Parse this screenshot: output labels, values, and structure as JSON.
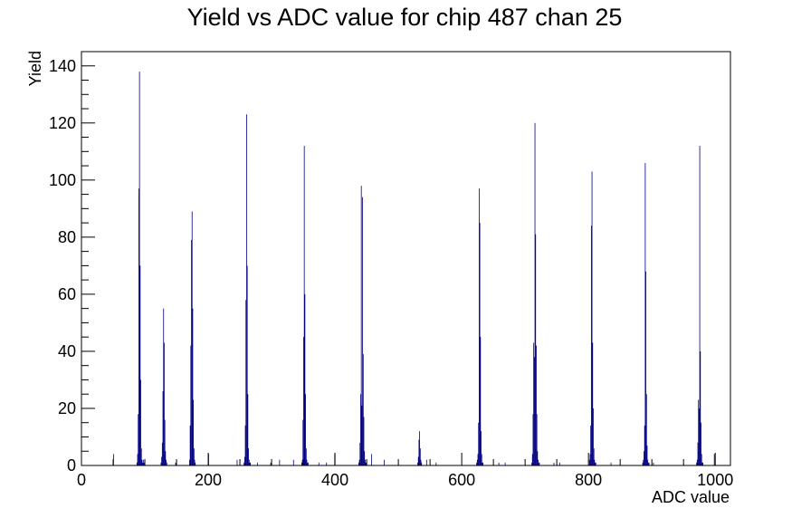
{
  "chart_data": {
    "type": "bar",
    "title": "Yield vs ADC value for chip 487 chan 25",
    "xlabel": "ADC value",
    "ylabel": "Yield",
    "xlim": [
      0,
      1024
    ],
    "ylim": [
      0,
      145
    ],
    "x_ticks": [
      0,
      200,
      400,
      600,
      800,
      1000
    ],
    "y_ticks": [
      0,
      20,
      40,
      60,
      80,
      100,
      120,
      140
    ],
    "grid": false,
    "legend": "none",
    "series_color": "#000080",
    "series": [
      {
        "x": [
          50,
          87,
          88,
          89,
          90,
          91,
          92,
          93,
          94,
          95,
          96,
          97,
          98,
          125,
          126,
          127,
          128,
          129,
          130,
          131,
          132,
          133,
          134,
          148,
          170,
          171,
          172,
          173,
          174,
          175,
          176,
          177,
          178,
          179,
          200,
          245,
          256,
          257,
          258,
          259,
          260,
          261,
          262,
          263,
          264,
          265,
          266,
          277,
          298,
          312,
          334,
          347,
          348,
          349,
          350,
          351,
          352,
          353,
          354,
          355,
          356,
          357,
          374,
          386,
          399,
          437,
          438,
          439,
          440,
          441,
          442,
          443,
          444,
          445,
          446,
          447,
          448,
          449,
          457,
          477,
          530,
          531,
          532,
          533,
          534,
          535,
          536,
          544,
          559,
          623,
          624,
          625,
          626,
          627,
          628,
          629,
          630,
          631,
          632,
          633,
          658,
          668,
          710,
          711,
          712,
          713,
          714,
          715,
          716,
          717,
          718,
          719,
          720,
          721,
          722,
          745,
          754,
          801,
          802,
          803,
          804,
          805,
          806,
          807,
          808,
          809,
          810,
          811,
          835,
          885,
          886,
          887,
          888,
          889,
          890,
          891,
          892,
          893,
          894,
          895,
          902,
          970,
          971,
          972,
          973,
          974,
          975,
          976,
          977,
          978,
          979,
          980,
          998
        ],
        "y": [
          4,
          1,
          4,
          18,
          97,
          138,
          70,
          30,
          6,
          2,
          1,
          2,
          1,
          1,
          3,
          8,
          26,
          55,
          43,
          16,
          5,
          2,
          1,
          1,
          2,
          14,
          42,
          79,
          89,
          55,
          23,
          6,
          2,
          1,
          4,
          2,
          1,
          3,
          14,
          58,
          123,
          70,
          25,
          6,
          2,
          1,
          1,
          1,
          1,
          2,
          2,
          1,
          2,
          16,
          45,
          112,
          60,
          25,
          6,
          2,
          1,
          1,
          1,
          1,
          4,
          1,
          2,
          8,
          25,
          98,
          21,
          94,
          39,
          17,
          5,
          2,
          1,
          1,
          4,
          2,
          1,
          3,
          9,
          12,
          6,
          2,
          1,
          2,
          1,
          1,
          2,
          4,
          15,
          97,
          85,
          45,
          12,
          4,
          1,
          1,
          1,
          1,
          1,
          4,
          18,
          43,
          38,
          120,
          81,
          42,
          18,
          5,
          2,
          1,
          1,
          1,
          1,
          2,
          4,
          14,
          84,
          103,
          43,
          20,
          6,
          2,
          1,
          1,
          1,
          1,
          2,
          5,
          14,
          106,
          68,
          25,
          7,
          2,
          1,
          1,
          1,
          1,
          2,
          8,
          23,
          20,
          112,
          40,
          15,
          4,
          1,
          1,
          4
        ]
      }
    ]
  }
}
